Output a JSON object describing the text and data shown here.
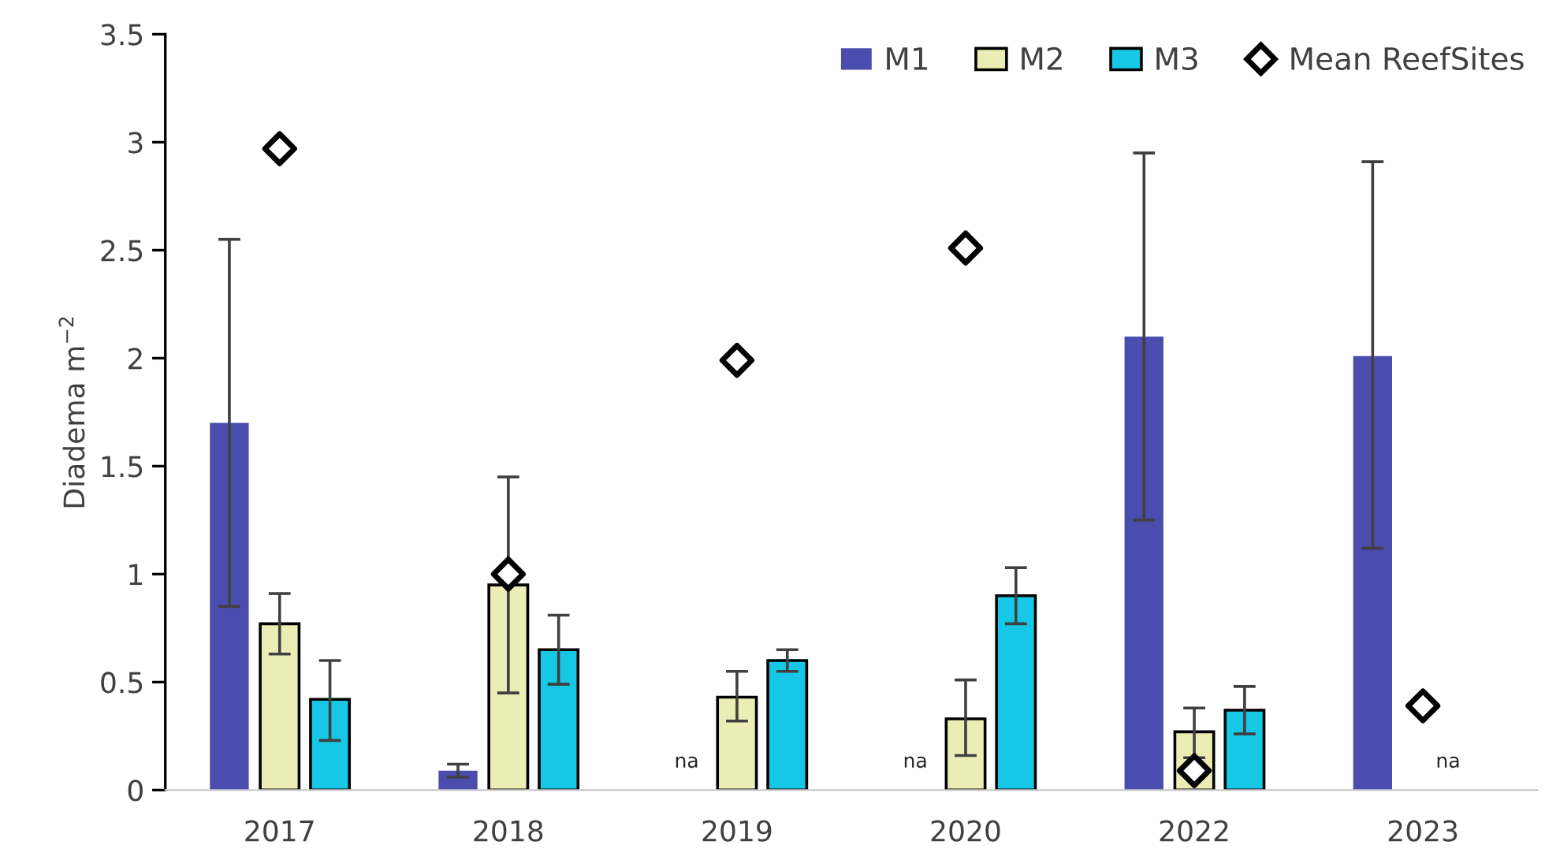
{
  "chart_data": {
    "type": "bar",
    "ylabel": "Diadema m$^{−2}$",
    "categories": [
      "2017",
      "2018",
      "2019",
      "2020",
      "2022",
      "2023"
    ],
    "series": [
      {
        "name": "M1",
        "color": "#4b4dae",
        "values": [
          1.7,
          0.09,
          null,
          null,
          2.1,
          2.01
        ],
        "errors": [
          [
            0.85,
            2.55
          ],
          [
            0.06,
            0.12
          ],
          null,
          null,
          [
            1.25,
            2.95
          ],
          [
            1.12,
            2.91
          ]
        ]
      },
      {
        "name": "M2",
        "color": "#ececb5",
        "values": [
          0.77,
          0.95,
          0.43,
          0.33,
          0.27,
          null
        ],
        "errors": [
          [
            0.63,
            0.91
          ],
          [
            0.45,
            1.45
          ],
          [
            0.32,
            0.55
          ],
          [
            0.16,
            0.51
          ],
          [
            0.15,
            0.38
          ],
          null
        ]
      },
      {
        "name": "M3",
        "color": "#16c8e6",
        "values": [
          0.42,
          0.65,
          0.6,
          0.9,
          0.37,
          null
        ],
        "errors": [
          [
            0.23,
            0.6
          ],
          [
            0.49,
            0.81
          ],
          [
            0.55,
            0.65
          ],
          [
            0.77,
            1.03
          ],
          [
            0.26,
            0.48
          ],
          null
        ]
      },
      {
        "name": "Mean ReefSites",
        "type": "scatter",
        "marker": "diamond",
        "color": "#000000",
        "values": [
          2.97,
          1.0,
          1.99,
          2.51,
          0.09,
          0.39
        ]
      }
    ],
    "annotations": [
      "na",
      "na",
      "na"
    ],
    "ylim": [
      0,
      3.5
    ],
    "yticks": [
      0,
      0.5,
      1,
      1.5,
      2,
      2.5,
      3,
      3.5
    ],
    "grid": false,
    "legend": "top right"
  }
}
